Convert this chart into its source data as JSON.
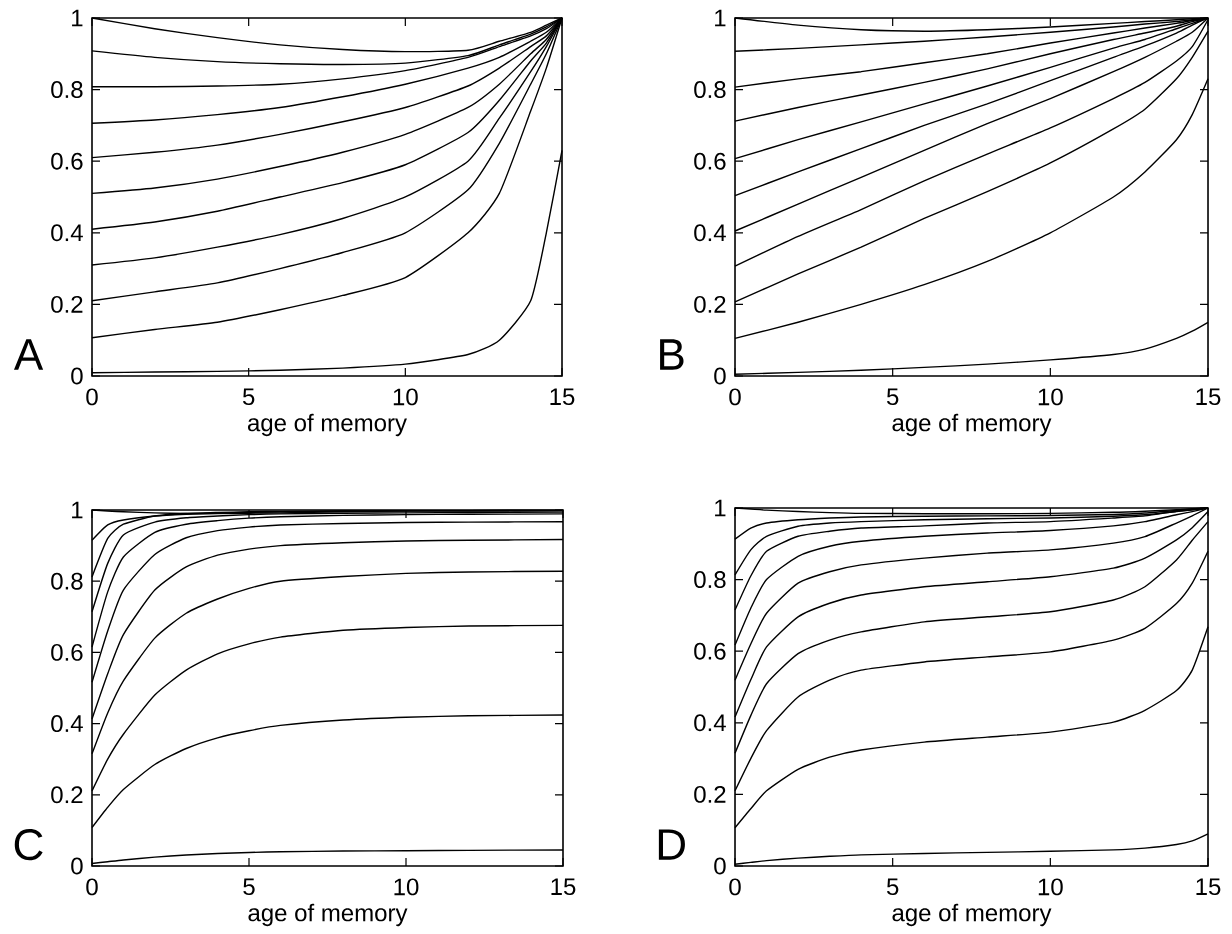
{
  "chart_data": [
    {
      "type": "line",
      "xlabel": "age of memory",
      "annotations": [
        "A"
      ],
      "x": [
        0,
        2,
        4,
        6,
        8,
        10,
        12,
        13,
        14,
        14.5,
        15
      ],
      "xlim": [
        0,
        15
      ],
      "ylim": [
        0,
        1
      ],
      "xticks": [
        0,
        5,
        10,
        15
      ],
      "yticks": [
        0,
        0.2,
        0.4,
        0.6,
        0.8,
        1
      ],
      "series": [
        {
          "color": "#000000",
          "values": [
            1,
            0.97,
            0.945,
            0.925,
            0.912,
            0.906,
            0.91,
            0.935,
            0.96,
            0.98,
            1
          ]
        },
        {
          "color": "#000000",
          "values": [
            0.908,
            0.89,
            0.878,
            0.872,
            0.87,
            0.874,
            0.895,
            0.925,
            0.955,
            0.975,
            1
          ]
        },
        {
          "color": "#000000",
          "values": [
            0.808,
            0.808,
            0.81,
            0.815,
            0.83,
            0.853,
            0.89,
            0.92,
            0.95,
            0.97,
            1
          ]
        },
        {
          "color": "#000000",
          "values": [
            0.706,
            0.715,
            0.73,
            0.75,
            0.78,
            0.815,
            0.86,
            0.89,
            0.935,
            0.96,
            1
          ]
        },
        {
          "color": "#000000",
          "values": [
            0.61,
            0.625,
            0.645,
            0.675,
            0.71,
            0.75,
            0.81,
            0.86,
            0.92,
            0.95,
            1
          ]
        },
        {
          "color": "#000000",
          "values": [
            0.51,
            0.525,
            0.55,
            0.585,
            0.625,
            0.675,
            0.75,
            0.815,
            0.9,
            0.94,
            1
          ]
        },
        {
          "color": "#000000",
          "values": [
            0.41,
            0.43,
            0.46,
            0.5,
            0.54,
            0.59,
            0.68,
            0.77,
            0.88,
            0.93,
            1
          ]
        },
        {
          "color": "#000000",
          "values": [
            0.31,
            0.33,
            0.36,
            0.395,
            0.44,
            0.5,
            0.6,
            0.72,
            0.85,
            0.92,
            1
          ]
        },
        {
          "color": "#000000",
          "values": [
            0.21,
            0.235,
            0.26,
            0.3,
            0.345,
            0.4,
            0.52,
            0.65,
            0.815,
            0.9,
            1
          ]
        },
        {
          "color": "#000000",
          "values": [
            0.107,
            0.13,
            0.15,
            0.185,
            0.225,
            0.275,
            0.4,
            0.51,
            0.74,
            0.86,
            1
          ]
        },
        {
          "color": "#000000",
          "values": [
            0.009,
            0.011,
            0.013,
            0.016,
            0.022,
            0.033,
            0.06,
            0.1,
            0.21,
            0.4,
            0.63
          ]
        }
      ]
    },
    {
      "type": "line",
      "xlabel": "age of memory",
      "annotations": [
        "B"
      ],
      "x": [
        0,
        2,
        4,
        6,
        8,
        10,
        12,
        13,
        14,
        14.5,
        15
      ],
      "xlim": [
        0,
        15
      ],
      "ylim": [
        0,
        1
      ],
      "xticks": [
        0,
        5,
        10,
        15
      ],
      "yticks": [
        0,
        0.2,
        0.4,
        0.6,
        0.8,
        1
      ],
      "series": [
        {
          "color": "#000000",
          "values": [
            1,
            0.98,
            0.967,
            0.963,
            0.967,
            0.975,
            0.985,
            0.99,
            0.995,
            0.998,
            1
          ]
        },
        {
          "color": "#000000",
          "values": [
            0.907,
            0.915,
            0.925,
            0.935,
            0.947,
            0.96,
            0.975,
            0.983,
            0.99,
            0.995,
            1
          ]
        },
        {
          "color": "#000000",
          "values": [
            0.807,
            0.83,
            0.85,
            0.875,
            0.9,
            0.93,
            0.958,
            0.972,
            0.985,
            0.993,
            1
          ]
        },
        {
          "color": "#000000",
          "values": [
            0.712,
            0.75,
            0.785,
            0.82,
            0.858,
            0.9,
            0.94,
            0.958,
            0.977,
            0.99,
            1
          ]
        },
        {
          "color": "#000000",
          "values": [
            0.607,
            0.66,
            0.71,
            0.76,
            0.81,
            0.862,
            0.916,
            0.94,
            0.97,
            0.985,
            1
          ]
        },
        {
          "color": "#000000",
          "values": [
            0.504,
            0.57,
            0.635,
            0.7,
            0.76,
            0.825,
            0.89,
            0.922,
            0.958,
            0.98,
            1
          ]
        },
        {
          "color": "#000000",
          "values": [
            0.405,
            0.48,
            0.555,
            0.63,
            0.705,
            0.775,
            0.85,
            0.89,
            0.935,
            0.96,
            1
          ]
        },
        {
          "color": "#000000",
          "values": [
            0.307,
            0.39,
            0.465,
            0.545,
            0.62,
            0.693,
            0.775,
            0.82,
            0.88,
            0.92,
            0.995
          ]
        },
        {
          "color": "#000000",
          "values": [
            0.207,
            0.285,
            0.36,
            0.44,
            0.515,
            0.595,
            0.69,
            0.745,
            0.83,
            0.89,
            0.963
          ]
        },
        {
          "color": "#000000",
          "values": [
            0.105,
            0.15,
            0.2,
            0.255,
            0.32,
            0.4,
            0.5,
            0.57,
            0.66,
            0.73,
            0.83
          ]
        },
        {
          "color": "#000000",
          "values": [
            0.005,
            0.01,
            0.016,
            0.024,
            0.033,
            0.045,
            0.06,
            0.075,
            0.105,
            0.125,
            0.15
          ]
        }
      ]
    },
    {
      "type": "line",
      "xlabel": "age of memory",
      "annotations": [
        "C"
      ],
      "x": [
        0,
        0.5,
        1,
        2,
        3,
        4,
        5,
        6,
        8,
        10,
        12,
        15
      ],
      "xlim": [
        0,
        15
      ],
      "ylim": [
        0,
        1
      ],
      "xticks": [
        0,
        5,
        10,
        15
      ],
      "yticks": [
        0,
        0.2,
        0.4,
        0.6,
        0.8,
        1
      ],
      "series": [
        {
          "color": "#000000",
          "values": [
            1,
            0.997,
            0.995,
            0.992,
            0.99,
            0.99,
            0.991,
            0.992,
            0.995,
            0.997,
            0.998,
            0.999
          ]
        },
        {
          "color": "#000000",
          "values": [
            0.915,
            0.958,
            0.972,
            0.983,
            0.988,
            0.991,
            0.993,
            0.995,
            0.997,
            0.998,
            0.998,
            0.999
          ]
        },
        {
          "color": "#000000",
          "values": [
            0.812,
            0.92,
            0.96,
            0.983,
            0.99,
            0.993,
            0.995,
            0.996,
            0.997,
            0.998,
            0.998,
            0.998
          ]
        },
        {
          "color": "#000000",
          "values": [
            0.714,
            0.85,
            0.93,
            0.966,
            0.978,
            0.983,
            0.987,
            0.989,
            0.991,
            0.992,
            0.993,
            0.994
          ]
        },
        {
          "color": "#000000",
          "values": [
            0.615,
            0.77,
            0.868,
            0.937,
            0.96,
            0.97,
            0.977,
            0.981,
            0.985,
            0.987,
            0.988,
            0.989
          ]
        },
        {
          "color": "#000000",
          "values": [
            0.516,
            0.66,
            0.775,
            0.875,
            0.922,
            0.942,
            0.952,
            0.958,
            0.962,
            0.965,
            0.966,
            0.967
          ]
        },
        {
          "color": "#000000",
          "values": [
            0.413,
            0.54,
            0.65,
            0.775,
            0.84,
            0.873,
            0.89,
            0.9,
            0.908,
            0.913,
            0.915,
            0.917
          ]
        },
        {
          "color": "#000000",
          "values": [
            0.315,
            0.43,
            0.52,
            0.64,
            0.71,
            0.75,
            0.78,
            0.8,
            0.813,
            0.822,
            0.826,
            0.828
          ]
        },
        {
          "color": "#000000",
          "values": [
            0.211,
            0.3,
            0.37,
            0.48,
            0.55,
            0.596,
            0.624,
            0.643,
            0.662,
            0.67,
            0.674,
            0.676
          ]
        },
        {
          "color": "#000000",
          "values": [
            0.108,
            0.165,
            0.215,
            0.285,
            0.33,
            0.36,
            0.38,
            0.395,
            0.41,
            0.418,
            0.422,
            0.424
          ]
        },
        {
          "color": "#000000",
          "values": [
            0.007,
            0.012,
            0.017,
            0.025,
            0.031,
            0.035,
            0.038,
            0.04,
            0.042,
            0.043,
            0.044,
            0.045
          ]
        }
      ]
    },
    {
      "type": "line",
      "xlabel": "age of memory",
      "annotations": [
        "D"
      ],
      "x": [
        0,
        0.5,
        1,
        2,
        3,
        4,
        6,
        8,
        10,
        12,
        13,
        14,
        14.5,
        15
      ],
      "xlim": [
        0,
        15
      ],
      "ylim": [
        0,
        1
      ],
      "xticks": [
        0,
        5,
        10,
        15
      ],
      "yticks": [
        0,
        0.2,
        0.4,
        0.6,
        0.8,
        1
      ],
      "series": [
        {
          "color": "#000000",
          "values": [
            1,
            0.997,
            0.994,
            0.99,
            0.987,
            0.985,
            0.984,
            0.984,
            0.985,
            0.988,
            0.991,
            0.995,
            0.998,
            1
          ]
        },
        {
          "color": "#000000",
          "values": [
            0.913,
            0.944,
            0.958,
            0.967,
            0.972,
            0.975,
            0.977,
            0.978,
            0.979,
            0.982,
            0.986,
            0.993,
            0.997,
            1
          ]
        },
        {
          "color": "#000000",
          "values": [
            0.813,
            0.883,
            0.921,
            0.949,
            0.958,
            0.962,
            0.967,
            0.97,
            0.972,
            0.977,
            0.981,
            0.99,
            0.995,
            1
          ]
        },
        {
          "color": "#000000",
          "values": [
            0.715,
            0.81,
            0.879,
            0.921,
            0.935,
            0.944,
            0.95,
            0.958,
            0.962,
            0.972,
            0.978,
            0.991,
            0.995,
            1
          ]
        },
        {
          "color": "#000000",
          "values": [
            0.617,
            0.72,
            0.8,
            0.865,
            0.893,
            0.907,
            0.921,
            0.93,
            0.937,
            0.95,
            0.962,
            0.981,
            0.99,
            1
          ]
        },
        {
          "color": "#000000",
          "values": [
            0.519,
            0.62,
            0.706,
            0.79,
            0.822,
            0.841,
            0.86,
            0.874,
            0.883,
            0.902,
            0.92,
            0.958,
            0.978,
            1
          ]
        },
        {
          "color": "#000000",
          "values": [
            0.416,
            0.52,
            0.612,
            0.696,
            0.734,
            0.757,
            0.78,
            0.794,
            0.808,
            0.832,
            0.86,
            0.911,
            0.945,
            0.99
          ]
        },
        {
          "color": "#000000",
          "values": [
            0.315,
            0.42,
            0.509,
            0.593,
            0.631,
            0.654,
            0.682,
            0.696,
            0.71,
            0.743,
            0.78,
            0.855,
            0.91,
            0.962
          ]
        },
        {
          "color": "#000000",
          "values": [
            0.21,
            0.3,
            0.378,
            0.472,
            0.519,
            0.547,
            0.57,
            0.584,
            0.598,
            0.631,
            0.664,
            0.733,
            0.79,
            0.879
          ]
        },
        {
          "color": "#000000",
          "values": [
            0.107,
            0.16,
            0.21,
            0.27,
            0.304,
            0.324,
            0.346,
            0.36,
            0.374,
            0.402,
            0.435,
            0.49,
            0.547,
            0.668
          ]
        },
        {
          "color": "#000000",
          "values": [
            0.005,
            0.01,
            0.015,
            0.022,
            0.027,
            0.031,
            0.035,
            0.038,
            0.041,
            0.045,
            0.05,
            0.06,
            0.07,
            0.09
          ]
        }
      ]
    }
  ]
}
